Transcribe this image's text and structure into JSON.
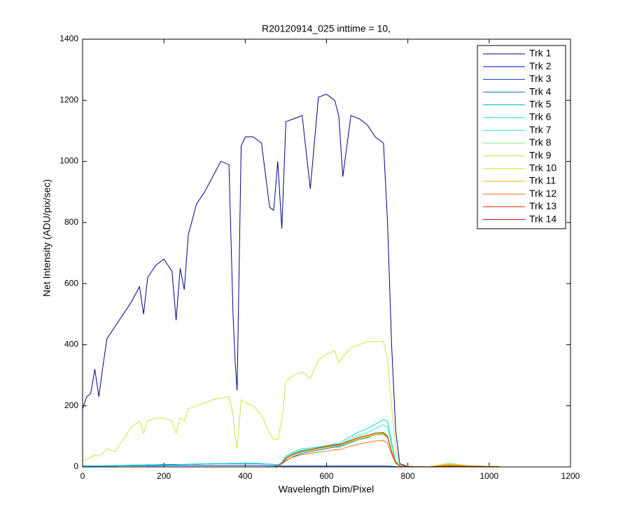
{
  "chart_data": {
    "type": "line",
    "title": "R20120914_025 inttime = 10,",
    "x_label": "Wavelength Dim/Pixel",
    "y_label": "Net Intensity (ADU/pix/sec)",
    "xlim": [
      0,
      1200
    ],
    "ylim": [
      0,
      1400
    ],
    "xticks": [
      0,
      200,
      400,
      600,
      800,
      1000,
      1200
    ],
    "yticks": [
      0,
      200,
      400,
      600,
      800,
      1000,
      1200,
      1400
    ],
    "grid": false,
    "legend": "upper right",
    "x": [
      0,
      10,
      20,
      30,
      40,
      50,
      60,
      80,
      100,
      120,
      140,
      150,
      160,
      180,
      200,
      220,
      230,
      240,
      250,
      260,
      280,
      300,
      320,
      340,
      360,
      370,
      375,
      380,
      390,
      400,
      420,
      440,
      460,
      470,
      480,
      490,
      500,
      520,
      540,
      560,
      580,
      600,
      620,
      630,
      640,
      660,
      680,
      700,
      720,
      740,
      750,
      760,
      770,
      780,
      800,
      850,
      900,
      950,
      1000,
      1024
    ],
    "series": [
      {
        "name": "Trk 1",
        "color": "#00008a",
        "values": [
          190,
          230,
          240,
          320,
          230,
          330,
          420,
          460,
          500,
          540,
          590,
          500,
          620,
          660,
          680,
          640,
          480,
          650,
          580,
          760,
          860,
          900,
          950,
          1000,
          990,
          500,
          350,
          250,
          1050,
          1080,
          1080,
          1060,
          850,
          840,
          1000,
          780,
          1130,
          1140,
          1150,
          910,
          1210,
          1220,
          1200,
          1150,
          950,
          1150,
          1140,
          1120,
          1080,
          1060,
          800,
          400,
          120,
          10,
          2,
          0,
          0,
          0,
          0,
          0
        ]
      },
      {
        "name": "Trk 2",
        "color": "#0000c0",
        "values": [
          0,
          0,
          0,
          0,
          0,
          0,
          0,
          0,
          0,
          0,
          0,
          0,
          0,
          0,
          0,
          0,
          0,
          0,
          0,
          0,
          0,
          0,
          0,
          0,
          0,
          0,
          0,
          0,
          0,
          0,
          0,
          0,
          0,
          0,
          0,
          0,
          0,
          0,
          0,
          0,
          0,
          0,
          0,
          0,
          0,
          0,
          0,
          0,
          0,
          0,
          0,
          0,
          0,
          0,
          0,
          0,
          0,
          0,
          0,
          0
        ]
      },
      {
        "name": "Trk 3",
        "color": "#0040c8",
        "values": [
          3,
          3,
          3,
          3,
          3,
          3,
          3,
          3,
          4,
          4,
          4,
          4,
          4,
          4,
          5,
          5,
          5,
          5,
          5,
          5,
          5,
          5,
          5,
          5,
          5,
          5,
          5,
          5,
          5,
          5,
          5,
          5,
          4,
          4,
          4,
          3,
          3,
          3,
          3,
          3,
          3,
          3,
          3,
          3,
          3,
          3,
          3,
          3,
          3,
          3,
          3,
          2,
          1,
          0,
          0,
          0,
          0,
          0,
          0,
          0
        ]
      },
      {
        "name": "Trk 4",
        "color": "#0070b8",
        "values": [
          2,
          2,
          3,
          3,
          3,
          3,
          4,
          4,
          5,
          6,
          6,
          6,
          7,
          7,
          8,
          8,
          8,
          8,
          8,
          9,
          9,
          10,
          10,
          11,
          11,
          11,
          11,
          11,
          11,
          11,
          11,
          10,
          9,
          8,
          7,
          10,
          20,
          35,
          45,
          50,
          55,
          60,
          65,
          65,
          70,
          80,
          90,
          95,
          105,
          105,
          95,
          50,
          15,
          3,
          1,
          0,
          2,
          1,
          0,
          0
        ]
      },
      {
        "name": "Trk 5",
        "color": "#00a8c8",
        "values": [
          0,
          0,
          0,
          0,
          0,
          0,
          0,
          0,
          0,
          0,
          0,
          0,
          0,
          0,
          0,
          0,
          0,
          0,
          0,
          0,
          0,
          0,
          0,
          0,
          0,
          0,
          0,
          0,
          0,
          0,
          0,
          0,
          0,
          0,
          2,
          12,
          28,
          43,
          53,
          57,
          63,
          67,
          73,
          73,
          77,
          87,
          97,
          103,
          111,
          113,
          101,
          51,
          15,
          3,
          1,
          0,
          5,
          2,
          1,
          1
        ]
      },
      {
        "name": "Trk 6",
        "color": "#00dcdc",
        "values": [
          2,
          2,
          2,
          2,
          3,
          3,
          3,
          4,
          4,
          5,
          5,
          5,
          6,
          6,
          7,
          7,
          7,
          8,
          8,
          9,
          10,
          10,
          11,
          11,
          12,
          12,
          12,
          12,
          12,
          12,
          12,
          11,
          9,
          8,
          6,
          15,
          35,
          50,
          60,
          62,
          65,
          70,
          75,
          75,
          85,
          100,
          115,
          125,
          140,
          155,
          150,
          80,
          20,
          5,
          1,
          0,
          5,
          2,
          1,
          1
        ]
      },
      {
        "name": "Trk 7",
        "color": "#30f0c8",
        "values": [
          0,
          0,
          0,
          0,
          0,
          0,
          0,
          0,
          0,
          0,
          0,
          0,
          0,
          0,
          0,
          0,
          0,
          0,
          0,
          0,
          0,
          0,
          0,
          0,
          0,
          0,
          0,
          0,
          0,
          0,
          0,
          0,
          0,
          0,
          3,
          14,
          32,
          46,
          55,
          58,
          62,
          66,
          70,
          70,
          78,
          92,
          104,
          112,
          125,
          138,
          130,
          70,
          18,
          4,
          1,
          0,
          6,
          2,
          1,
          1
        ]
      },
      {
        "name": "Trk 8",
        "color": "#80f080",
        "values": [
          0,
          0,
          0,
          0,
          0,
          0,
          0,
          0,
          0,
          0,
          0,
          0,
          0,
          0,
          0,
          0,
          0,
          0,
          0,
          0,
          0,
          0,
          0,
          0,
          0,
          0,
          0,
          0,
          0,
          0,
          0,
          0,
          0,
          0,
          2,
          11,
          26,
          40,
          49,
          53,
          59,
          63,
          68,
          68,
          72,
          82,
          91,
          97,
          104,
          106,
          95,
          48,
          14,
          3,
          1,
          0,
          12,
          4,
          2,
          1
        ]
      },
      {
        "name": "Trk 9",
        "color": "#c0e840",
        "values": [
          20,
          25,
          30,
          40,
          35,
          45,
          60,
          50,
          90,
          130,
          150,
          110,
          150,
          160,
          160,
          150,
          110,
          160,
          150,
          190,
          200,
          210,
          220,
          225,
          230,
          170,
          100,
          60,
          220,
          210,
          200,
          170,
          110,
          90,
          90,
          150,
          280,
          300,
          310,
          290,
          350,
          370,
          380,
          340,
          360,
          390,
          400,
          410,
          410,
          410,
          350,
          200,
          60,
          5,
          2,
          0,
          10,
          3,
          2,
          2
        ]
      },
      {
        "name": "Trk 10",
        "color": "#d8e020",
        "values": [
          0,
          0,
          0,
          0,
          0,
          0,
          0,
          0,
          0,
          0,
          0,
          0,
          0,
          0,
          0,
          0,
          0,
          0,
          0,
          0,
          0,
          0,
          0,
          0,
          0,
          0,
          0,
          0,
          0,
          0,
          0,
          0,
          0,
          0,
          2,
          12,
          28,
          42,
          52,
          56,
          62,
          66,
          72,
          72,
          76,
          86,
          96,
          102,
          110,
          112,
          100,
          50,
          15,
          3,
          1,
          0,
          5,
          2,
          1,
          1
        ]
      },
      {
        "name": "Trk 11",
        "color": "#f0b000",
        "values": [
          0,
          0,
          0,
          0,
          0,
          0,
          0,
          0,
          0,
          0,
          0,
          0,
          0,
          0,
          0,
          0,
          0,
          0,
          0,
          0,
          0,
          0,
          0,
          0,
          0,
          0,
          0,
          0,
          0,
          0,
          0,
          0,
          0,
          0,
          2,
          11,
          27,
          41,
          51,
          55,
          60,
          64,
          70,
          70,
          74,
          84,
          93,
          99,
          106,
          108,
          97,
          48,
          14,
          3,
          1,
          0,
          8,
          3,
          1,
          1
        ]
      },
      {
        "name": "Trk 12",
        "color": "#f07020",
        "values": [
          0,
          0,
          0,
          0,
          0,
          0,
          0,
          0,
          0,
          0,
          0,
          0,
          0,
          0,
          0,
          0,
          0,
          0,
          0,
          0,
          0,
          0,
          0,
          0,
          0,
          0,
          0,
          0,
          0,
          0,
          0,
          0,
          0,
          0,
          2,
          10,
          22,
          33,
          40,
          44,
          48,
          52,
          56,
          56,
          60,
          68,
          75,
          80,
          85,
          86,
          78,
          40,
          12,
          2,
          1,
          0,
          4,
          2,
          1,
          1
        ]
      },
      {
        "name": "Trk 13",
        "color": "#e03000",
        "values": [
          0,
          0,
          0,
          0,
          0,
          0,
          0,
          0,
          0,
          0,
          0,
          0,
          0,
          0,
          0,
          0,
          0,
          0,
          0,
          0,
          0,
          0,
          0,
          0,
          0,
          0,
          0,
          0,
          0,
          0,
          0,
          0,
          0,
          0,
          2,
          12,
          29,
          43,
          52,
          57,
          62,
          67,
          72,
          72,
          77,
          87,
          97,
          103,
          110,
          111,
          100,
          50,
          15,
          3,
          1,
          0,
          3,
          2,
          1,
          1
        ]
      },
      {
        "name": "Trk 14",
        "color": "#c00000",
        "values": [
          0,
          0,
          0,
          0,
          0,
          0,
          0,
          0,
          0,
          0,
          0,
          0,
          0,
          0,
          0,
          0,
          0,
          0,
          0,
          0,
          0,
          0,
          0,
          0,
          0,
          0,
          0,
          0,
          0,
          0,
          0,
          0,
          0,
          0,
          0,
          0,
          0,
          0,
          0,
          0,
          0,
          0,
          0,
          0,
          0,
          0,
          0,
          0,
          0,
          0,
          0,
          0,
          0,
          0,
          0,
          0,
          0,
          0,
          0,
          0
        ]
      }
    ]
  }
}
